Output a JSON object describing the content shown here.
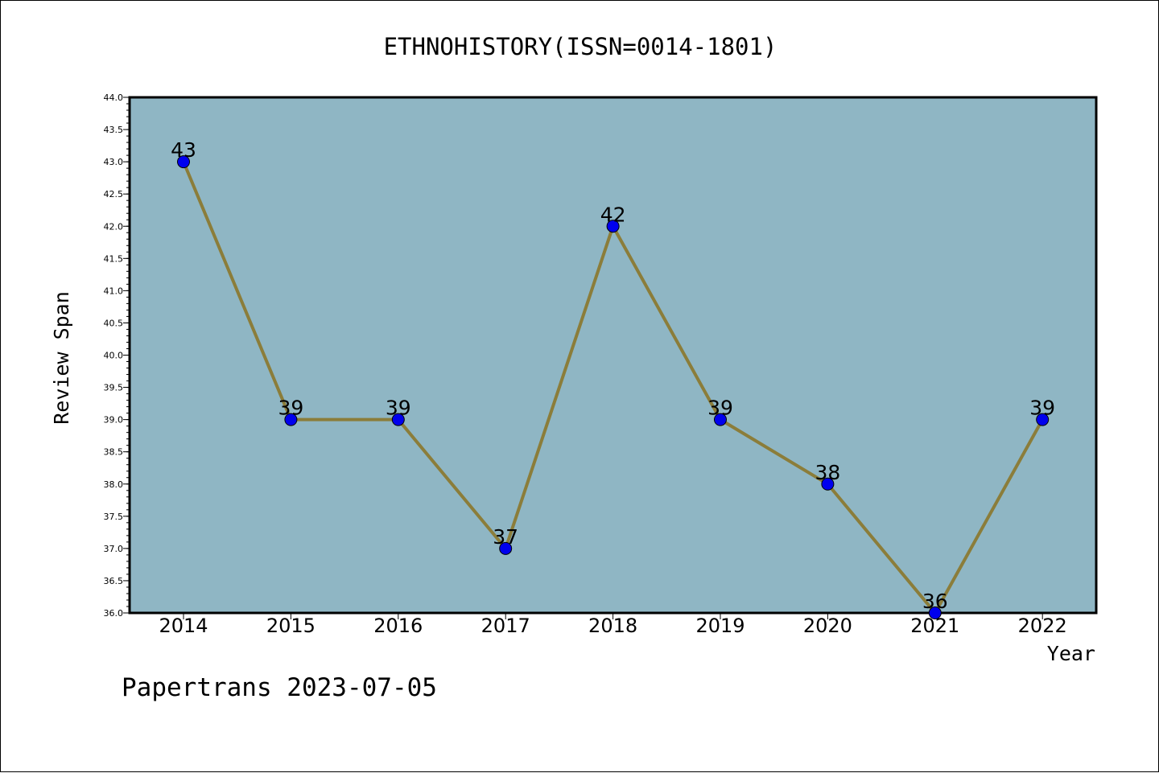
{
  "chart_data": {
    "type": "line",
    "title": "ETHNOHISTORY(ISSN=0014-1801)",
    "xlabel": "Year",
    "ylabel": "Review Span",
    "categories": [
      "2014",
      "2015",
      "2016",
      "2017",
      "2018",
      "2019",
      "2020",
      "2021",
      "2022"
    ],
    "values": [
      43,
      39,
      39,
      37,
      42,
      39,
      38,
      36,
      39
    ],
    "data_labels": [
      "43",
      "39",
      "39",
      "37",
      "42",
      "39",
      "38",
      "36",
      "39"
    ],
    "ylim": [
      36.0,
      44.0
    ],
    "yticks": [
      "36.0",
      "36.5",
      "37.0",
      "37.5",
      "38.0",
      "38.5",
      "39.0",
      "39.5",
      "40.0",
      "40.5",
      "41.0",
      "41.5",
      "42.0",
      "42.5",
      "43.0",
      "43.5",
      "44.0"
    ],
    "grid": false,
    "legend": "none",
    "colors": {
      "plot_background": "#8fb6c4",
      "line": "#8b7d3a",
      "marker": "#0000ee"
    }
  },
  "footer": "Papertrans 2023-07-05"
}
